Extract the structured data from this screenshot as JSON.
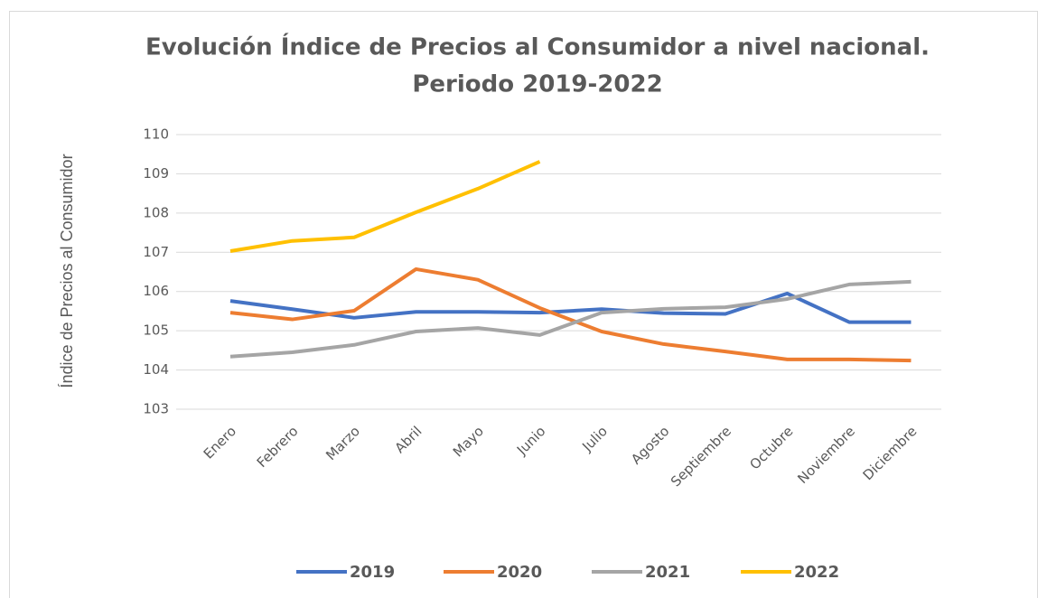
{
  "chart_data": {
    "type": "line",
    "title": [
      "Evolución Índice de Precios al Consumidor a nivel nacional.",
      "Periodo 2019-2022"
    ],
    "y_label": "Índice de Precios al Consumidor",
    "categories": [
      "Enero",
      "Febrero",
      "Marzo",
      "Abril",
      "Mayo",
      "Junio",
      "Julio",
      "Agosto",
      "Septiembre",
      "Octubre",
      "Noviembre",
      "Diciembre"
    ],
    "series": [
      {
        "name": "2019",
        "color": "#4472c4",
        "values": [
          105.76,
          105.55,
          105.33,
          105.48,
          105.48,
          105.46,
          105.55,
          105.45,
          105.43,
          105.95,
          105.22,
          105.22
        ]
      },
      {
        "name": "2020",
        "color": "#ed7d31",
        "values": [
          105.46,
          105.29,
          105.51,
          106.57,
          106.3,
          105.58,
          104.98,
          104.66,
          104.47,
          104.27,
          104.27,
          104.24
        ]
      },
      {
        "name": "2021",
        "color": "#a5a5a5",
        "values": [
          104.34,
          104.45,
          104.64,
          104.98,
          105.07,
          104.89,
          105.46,
          105.56,
          105.6,
          105.81,
          106.18,
          106.25
        ]
      },
      {
        "name": "2022",
        "color": "#ffc000",
        "values": [
          107.03,
          107.29,
          107.38,
          108.02,
          108.62,
          109.31,
          null,
          null,
          null,
          null,
          null,
          null
        ]
      }
    ],
    "ylim": [
      103,
      110
    ],
    "yticks": [
      103,
      104,
      105,
      106,
      107,
      108,
      109,
      110
    ],
    "grid": true,
    "legend": "bottom"
  }
}
